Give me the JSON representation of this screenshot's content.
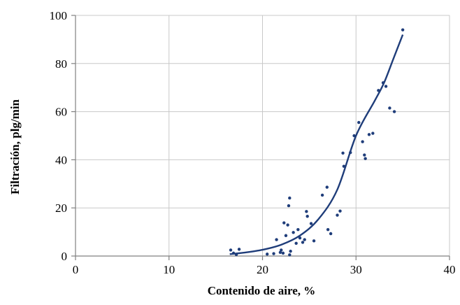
{
  "chart_data": {
    "type": "scatter",
    "xlabel": "Contenido de aire, %",
    "ylabel": "Filtración, plg/min",
    "xlim": [
      0,
      40
    ],
    "ylim": [
      0,
      100
    ],
    "xticks": [
      0,
      10,
      20,
      30,
      40
    ],
    "yticks": [
      0,
      20,
      40,
      60,
      80,
      100
    ],
    "grid": true,
    "colors": {
      "points": "#1f3d7a",
      "trend": "#1f3d7a"
    },
    "series": [
      {
        "values": [
          [
            16.6,
            2.5
          ],
          [
            16.9,
            1.2
          ],
          [
            17.2,
            0.6
          ],
          [
            17.5,
            2.8
          ],
          [
            20.5,
            0.8
          ],
          [
            21.2,
            1.0
          ],
          [
            21.5,
            6.8
          ],
          [
            21.9,
            1.5
          ],
          [
            22.0,
            2.5
          ],
          [
            22.2,
            1.2
          ],
          [
            22.3,
            13.8
          ],
          [
            22.5,
            8.5
          ],
          [
            22.7,
            12.9
          ],
          [
            22.8,
            20.9
          ],
          [
            22.9,
            24.1
          ],
          [
            22.9,
            0.5
          ],
          [
            23.0,
            2.0
          ],
          [
            23.3,
            9.8
          ],
          [
            23.6,
            5.3
          ],
          [
            23.8,
            11.0
          ],
          [
            24.0,
            7.5
          ],
          [
            24.3,
            5.7
          ],
          [
            24.5,
            6.8
          ],
          [
            24.7,
            18.5
          ],
          [
            24.8,
            16.5
          ],
          [
            25.2,
            13.5
          ],
          [
            25.5,
            6.3
          ],
          [
            26.4,
            25.3
          ],
          [
            26.9,
            28.6
          ],
          [
            27.0,
            11.0
          ],
          [
            27.3,
            9.3
          ],
          [
            28.0,
            17.0
          ],
          [
            28.3,
            18.7
          ],
          [
            28.6,
            42.8
          ],
          [
            28.7,
            37.3
          ],
          [
            29.4,
            43.0
          ],
          [
            29.8,
            50.0
          ],
          [
            30.3,
            55.5
          ],
          [
            30.7,
            47.5
          ],
          [
            30.9,
            42.0
          ],
          [
            31.0,
            40.5
          ],
          [
            31.4,
            50.5
          ],
          [
            31.8,
            51.0
          ],
          [
            32.4,
            68.8
          ],
          [
            32.9,
            72.0
          ],
          [
            33.2,
            70.5
          ],
          [
            33.6,
            61.5
          ],
          [
            34.1,
            60.0
          ],
          [
            35.0,
            94.0
          ]
        ]
      }
    ],
    "trendline": {
      "type": "exponential",
      "samples": [
        [
          16.5,
          0.8
        ],
        [
          18.0,
          1.4
        ],
        [
          20.0,
          2.6
        ],
        [
          22.0,
          4.7
        ],
        [
          24.0,
          8.5
        ],
        [
          26.0,
          15.4
        ],
        [
          28.0,
          27.6
        ],
        [
          30.0,
          50.0
        ],
        [
          32.0,
          64.5
        ],
        [
          33.0,
          72.0
        ],
        [
          34.0,
          82.0
        ],
        [
          35.0,
          92.0
        ]
      ]
    }
  }
}
